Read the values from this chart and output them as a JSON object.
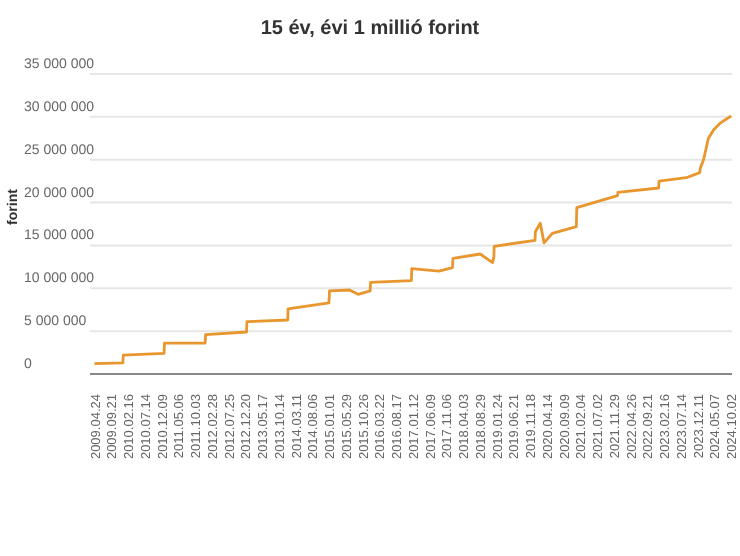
{
  "chart_data": {
    "type": "line",
    "title": "15 év, évi 1 millió forint",
    "ylabel": "forint",
    "x": [
      "2009-04-24",
      "2009-12-31",
      "2010-01-04",
      "2010-12-31",
      "2011-01-04",
      "2011-12-30",
      "2012-01-03",
      "2012-12-31",
      "2013-01-03",
      "2013-12-31",
      "2014-01-03",
      "2014-12-31",
      "2015-01-05",
      "2015-07-01",
      "2015-09-15",
      "2015-12-31",
      "2016-01-04",
      "2016-12-30",
      "2017-01-03",
      "2017-09-01",
      "2017-12-29",
      "2018-01-03",
      "2018-09-01",
      "2018-12-20",
      "2018-12-31",
      "2019-01-03",
      "2019-12-31",
      "2020-01-03",
      "2020-02-15",
      "2020-03-20",
      "2020-06-01",
      "2020-12-31",
      "2021-01-04",
      "2021-12-31",
      "2022-01-03",
      "2022-12-30",
      "2023-01-03",
      "2023-09-01",
      "2023-12-29",
      "2024-01-03",
      "2024-02-01",
      "2024-03-15",
      "2024-05-01",
      "2024-07-01",
      "2024-10-02"
    ],
    "series": [
      {
        "color": "#e8962e",
        "values": [
          1200000,
          1300000,
          2200000,
          2400000,
          3600000,
          3600000,
          4600000,
          4900000,
          6100000,
          6300000,
          7600000,
          8300000,
          9700000,
          9800000,
          9300000,
          9700000,
          10700000,
          10900000,
          12300000,
          12000000,
          12400000,
          13500000,
          14000000,
          13000000,
          13600000,
          14900000,
          15600000,
          16600000,
          17600000,
          15300000,
          16400000,
          17200000,
          19400000,
          20800000,
          21200000,
          21700000,
          22500000,
          22900000,
          23500000,
          24000000,
          25000000,
          27500000,
          28500000,
          29300000,
          30100000
        ]
      }
    ],
    "xlim": [
      "2009-03-15",
      "2024-10-10"
    ],
    "xticks": [
      {
        "value": "2009-04-24",
        "label": "2009.04.24"
      },
      {
        "value": "2009-09-21",
        "label": "2009.09.21"
      },
      {
        "value": "2010-02-16",
        "label": "2010.02.16"
      },
      {
        "value": "2010-07-14",
        "label": "2010.07.14"
      },
      {
        "value": "2010-12-09",
        "label": "2010.12.09"
      },
      {
        "value": "2011-05-06",
        "label": "2011.05.06"
      },
      {
        "value": "2011-10-03",
        "label": "2011.10.03"
      },
      {
        "value": "2012-02-28",
        "label": "2012.02.28"
      },
      {
        "value": "2012-07-25",
        "label": "2012.07.25"
      },
      {
        "value": "2012-12-20",
        "label": "2012.12.20"
      },
      {
        "value": "2013-05-17",
        "label": "2013.05.17"
      },
      {
        "value": "2013-10-14",
        "label": "2013.10.14"
      },
      {
        "value": "2014-03-11",
        "label": "2014.03.11"
      },
      {
        "value": "2014-08-06",
        "label": "2014.08.06"
      },
      {
        "value": "2015-01-01",
        "label": "2015.01.01"
      },
      {
        "value": "2015-05-29",
        "label": "2015.05.29"
      },
      {
        "value": "2015-10-26",
        "label": "2015.10.26"
      },
      {
        "value": "2016-03-22",
        "label": "2016.03.22"
      },
      {
        "value": "2016-08-17",
        "label": "2016.08.17"
      },
      {
        "value": "2017-01-12",
        "label": "2017.01.12"
      },
      {
        "value": "2017-06-09",
        "label": "2017.06.09"
      },
      {
        "value": "2017-11-06",
        "label": "2017.11.06"
      },
      {
        "value": "2018-04-03",
        "label": "2018.04.03"
      },
      {
        "value": "2018-08-29",
        "label": "2018.08.29"
      },
      {
        "value": "2019-01-24",
        "label": "2019.01.24"
      },
      {
        "value": "2019-06-21",
        "label": "2019.06.21"
      },
      {
        "value": "2019-11-18",
        "label": "2019.11.18"
      },
      {
        "value": "2020-04-14",
        "label": "2020.04.14"
      },
      {
        "value": "2020-09-09",
        "label": "2020.09.09"
      },
      {
        "value": "2021-02-04",
        "label": "2021.02.04"
      },
      {
        "value": "2021-07-02",
        "label": "2021.07.02"
      },
      {
        "value": "2021-11-29",
        "label": "2021.11.29"
      },
      {
        "value": "2022-04-26",
        "label": "2022.04.26"
      },
      {
        "value": "2022-09-21",
        "label": "2022.09.21"
      },
      {
        "value": "2023-02-16",
        "label": "2023.02.16"
      },
      {
        "value": "2023-07-14",
        "label": "2023.07.14"
      },
      {
        "value": "2023-12-11",
        "label": "2023.12.11"
      },
      {
        "value": "2024-05-07",
        "label": "2024.05.07"
      },
      {
        "value": "2024-10-02",
        "label": "2024.10.02"
      }
    ],
    "ylim": [
      0,
      35000000
    ],
    "yticks": [
      {
        "value": 0,
        "label": "0"
      },
      {
        "value": 5000000,
        "label": "5 000 000"
      },
      {
        "value": 10000000,
        "label": "10 000 000"
      },
      {
        "value": 15000000,
        "label": "15 000 000"
      },
      {
        "value": 20000000,
        "label": "20 000 000"
      },
      {
        "value": 25000000,
        "label": "25 000 000"
      },
      {
        "value": 30000000,
        "label": "30 000 000"
      },
      {
        "value": 35000000,
        "label": "35 000 000"
      }
    ],
    "grid": "y",
    "legend": false,
    "marker": "none",
    "line_style": "solid"
  }
}
